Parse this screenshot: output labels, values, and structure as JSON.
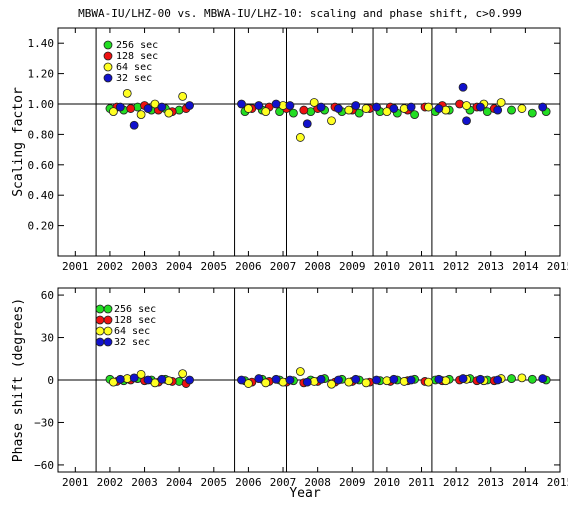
{
  "title": "MBWA-IU/LHZ-00 vs. MBWA-IU/LHZ-10: scaling and phase shift, c>0.999",
  "x_axis_label": "Year",
  "legend": [
    {
      "label": "256 sec",
      "color": "#22dd22"
    },
    {
      "label": "128 sec",
      "color": "#ee1111"
    },
    {
      "label": "64 sec",
      "color": "#ffff22"
    },
    {
      "label": "32 sec",
      "color": "#1111cc"
    }
  ],
  "chart_data": [
    {
      "type": "scatter",
      "ylabel": "Scaling factor",
      "xlim": [
        2000.5,
        2015.0
      ],
      "ylim": [
        0.0,
        1.5
      ],
      "xticks": [
        "2001",
        "2002",
        "2003",
        "2004",
        "2005",
        "2006",
        "2007",
        "2008",
        "2009",
        "2010",
        "2011",
        "2012",
        "2013",
        "2014",
        "2015"
      ],
      "yticks": [
        "0.20",
        "0.40",
        "0.60",
        "0.80",
        "1.00",
        "1.20",
        "1.40"
      ],
      "reference_line": 1.0,
      "vertical_lines": [
        2001.6,
        2005.6,
        2007.1,
        2009.6,
        2011.3
      ],
      "series": [
        {
          "name": "256 sec",
          "points": [
            [
              2002.0,
              0.97
            ],
            [
              2002.4,
              0.96
            ],
            [
              2002.8,
              0.98
            ],
            [
              2003.2,
              0.96
            ],
            [
              2003.6,
              0.97
            ],
            [
              2004.0,
              0.96
            ],
            [
              2005.9,
              0.95
            ],
            [
              2006.4,
              0.96
            ],
            [
              2006.9,
              0.95
            ],
            [
              2007.3,
              0.94
            ],
            [
              2007.8,
              0.95
            ],
            [
              2008.2,
              0.96
            ],
            [
              2008.7,
              0.95
            ],
            [
              2009.2,
              0.94
            ],
            [
              2009.8,
              0.95
            ],
            [
              2010.3,
              0.94
            ],
            [
              2010.8,
              0.93
            ],
            [
              2011.4,
              0.95
            ],
            [
              2011.8,
              0.96
            ],
            [
              2012.4,
              0.96
            ],
            [
              2012.9,
              0.95
            ],
            [
              2013.6,
              0.96
            ],
            [
              2014.2,
              0.94
            ],
            [
              2014.6,
              0.95
            ]
          ]
        },
        {
          "name": "128 sec",
          "points": [
            [
              2002.2,
              0.98
            ],
            [
              2002.6,
              0.97
            ],
            [
              2003.0,
              0.99
            ],
            [
              2003.4,
              0.96
            ],
            [
              2003.8,
              0.95
            ],
            [
              2004.2,
              0.97
            ],
            [
              2006.1,
              0.97
            ],
            [
              2006.6,
              0.98
            ],
            [
              2007.1,
              0.97
            ],
            [
              2007.6,
              0.96
            ],
            [
              2008.0,
              0.97
            ],
            [
              2008.5,
              0.98
            ],
            [
              2009.0,
              0.96
            ],
            [
              2009.5,
              0.97
            ],
            [
              2010.1,
              0.98
            ],
            [
              2010.6,
              0.96
            ],
            [
              2011.1,
              0.98
            ],
            [
              2011.6,
              0.99
            ],
            [
              2012.1,
              1.0
            ],
            [
              2012.6,
              0.98
            ],
            [
              2013.1,
              0.97
            ]
          ]
        },
        {
          "name": "64 sec",
          "points": [
            [
              2002.1,
              0.95
            ],
            [
              2002.5,
              1.07
            ],
            [
              2002.9,
              0.93
            ],
            [
              2003.3,
              1.0
            ],
            [
              2003.7,
              0.94
            ],
            [
              2004.1,
              1.05
            ],
            [
              2006.0,
              0.97
            ],
            [
              2006.5,
              0.95
            ],
            [
              2007.0,
              0.99
            ],
            [
              2007.5,
              0.78
            ],
            [
              2007.9,
              1.01
            ],
            [
              2008.4,
              0.89
            ],
            [
              2008.9,
              0.96
            ],
            [
              2009.4,
              0.97
            ],
            [
              2010.0,
              0.95
            ],
            [
              2010.5,
              0.97
            ],
            [
              2011.2,
              0.98
            ],
            [
              2011.7,
              0.96
            ],
            [
              2012.3,
              0.99
            ],
            [
              2012.8,
              1.0
            ],
            [
              2013.3,
              1.01
            ],
            [
              2013.9,
              0.97
            ]
          ]
        },
        {
          "name": "32 sec",
          "points": [
            [
              2002.3,
              0.98
            ],
            [
              2002.7,
              0.86
            ],
            [
              2003.1,
              0.97
            ],
            [
              2003.5,
              0.98
            ],
            [
              2004.3,
              0.99
            ],
            [
              2005.8,
              1.0
            ],
            [
              2006.3,
              0.99
            ],
            [
              2006.8,
              1.0
            ],
            [
              2007.2,
              0.99
            ],
            [
              2007.7,
              0.87
            ],
            [
              2008.1,
              0.98
            ],
            [
              2008.6,
              0.97
            ],
            [
              2009.1,
              0.99
            ],
            [
              2009.7,
              0.98
            ],
            [
              2010.2,
              0.97
            ],
            [
              2010.7,
              0.98
            ],
            [
              2011.5,
              0.97
            ],
            [
              2012.2,
              1.11
            ],
            [
              2012.3,
              0.89
            ],
            [
              2012.7,
              0.98
            ],
            [
              2013.2,
              0.96
            ],
            [
              2014.5,
              0.98
            ]
          ]
        }
      ]
    },
    {
      "type": "scatter",
      "ylabel": "Phase shift (degrees)",
      "xlim": [
        2000.5,
        2015.0
      ],
      "ylim": [
        -65,
        65
      ],
      "xticks": [
        "2001",
        "2002",
        "2003",
        "2004",
        "2005",
        "2006",
        "2007",
        "2008",
        "2009",
        "2010",
        "2011",
        "2012",
        "2013",
        "2014",
        "2015"
      ],
      "yticks": [
        "−60",
        "−30",
        "0",
        "30",
        "60"
      ],
      "reference_line": 0,
      "vertical_lines": [
        2001.6,
        2005.6,
        2007.1,
        2009.6,
        2011.3
      ],
      "series": [
        {
          "name": "256 sec",
          "points": [
            [
              2002.0,
              0.5
            ],
            [
              2002.4,
              -0.5
            ],
            [
              2002.8,
              1.0
            ],
            [
              2003.2,
              0.0
            ],
            [
              2003.6,
              0.5
            ],
            [
              2004.0,
              -1.0
            ],
            [
              2005.9,
              -0.5
            ],
            [
              2006.4,
              0.5
            ],
            [
              2006.9,
              0.0
            ],
            [
              2007.3,
              -0.5
            ],
            [
              2007.8,
              0.0
            ],
            [
              2008.2,
              1.0
            ],
            [
              2008.7,
              0.5
            ],
            [
              2009.2,
              0.0
            ],
            [
              2009.8,
              -0.5
            ],
            [
              2010.3,
              0.0
            ],
            [
              2010.8,
              0.5
            ],
            [
              2011.4,
              0.0
            ],
            [
              2011.8,
              0.5
            ],
            [
              2012.4,
              1.0
            ],
            [
              2012.9,
              0.0
            ],
            [
              2013.6,
              1.0
            ],
            [
              2014.2,
              0.5
            ],
            [
              2014.6,
              0.0
            ]
          ]
        },
        {
          "name": "128 sec",
          "points": [
            [
              2002.2,
              -1.0
            ],
            [
              2002.6,
              0.0
            ],
            [
              2003.0,
              -0.5
            ],
            [
              2003.4,
              -1.5
            ],
            [
              2003.8,
              -1.0
            ],
            [
              2004.2,
              -2.5
            ],
            [
              2006.1,
              -1.5
            ],
            [
              2006.6,
              -1.0
            ],
            [
              2007.1,
              -1.5
            ],
            [
              2007.6,
              -2.0
            ],
            [
              2008.0,
              -1.0
            ],
            [
              2008.5,
              -1.5
            ],
            [
              2009.0,
              -1.0
            ],
            [
              2009.5,
              -1.5
            ],
            [
              2010.1,
              -1.0
            ],
            [
              2010.6,
              -0.5
            ],
            [
              2011.1,
              -1.0
            ],
            [
              2011.6,
              -0.5
            ],
            [
              2012.1,
              0.0
            ],
            [
              2012.6,
              -0.5
            ],
            [
              2013.1,
              -0.5
            ]
          ]
        },
        {
          "name": "64 sec",
          "points": [
            [
              2002.1,
              -1.5
            ],
            [
              2002.5,
              1.0
            ],
            [
              2002.9,
              4.0
            ],
            [
              2003.3,
              -2.0
            ],
            [
              2003.7,
              -0.5
            ],
            [
              2004.1,
              4.5
            ],
            [
              2006.0,
              -2.5
            ],
            [
              2006.5,
              -2.0
            ],
            [
              2007.0,
              -1.5
            ],
            [
              2007.5,
              6.0
            ],
            [
              2007.9,
              -1.0
            ],
            [
              2008.4,
              -3.0
            ],
            [
              2008.9,
              -1.5
            ],
            [
              2009.4,
              -2.0
            ],
            [
              2010.0,
              -0.5
            ],
            [
              2010.5,
              -1.0
            ],
            [
              2011.2,
              -1.5
            ],
            [
              2011.7,
              -0.5
            ],
            [
              2012.3,
              0.5
            ],
            [
              2012.8,
              -0.5
            ],
            [
              2013.3,
              1.0
            ],
            [
              2013.9,
              1.5
            ]
          ]
        },
        {
          "name": "32 sec",
          "points": [
            [
              2002.3,
              0.5
            ],
            [
              2002.7,
              1.5
            ],
            [
              2003.1,
              0.0
            ],
            [
              2003.5,
              0.5
            ],
            [
              2004.3,
              0.0
            ],
            [
              2005.8,
              0.0
            ],
            [
              2006.3,
              1.0
            ],
            [
              2006.8,
              0.5
            ],
            [
              2007.2,
              0.0
            ],
            [
              2007.7,
              -1.5
            ],
            [
              2008.1,
              0.5
            ],
            [
              2008.6,
              0.0
            ],
            [
              2009.1,
              0.5
            ],
            [
              2009.7,
              0.0
            ],
            [
              2010.2,
              0.5
            ],
            [
              2010.7,
              0.0
            ],
            [
              2011.5,
              0.5
            ],
            [
              2012.2,
              1.0
            ],
            [
              2012.7,
              0.5
            ],
            [
              2013.2,
              0.0
            ],
            [
              2014.5,
              1.0
            ]
          ]
        }
      ]
    }
  ]
}
